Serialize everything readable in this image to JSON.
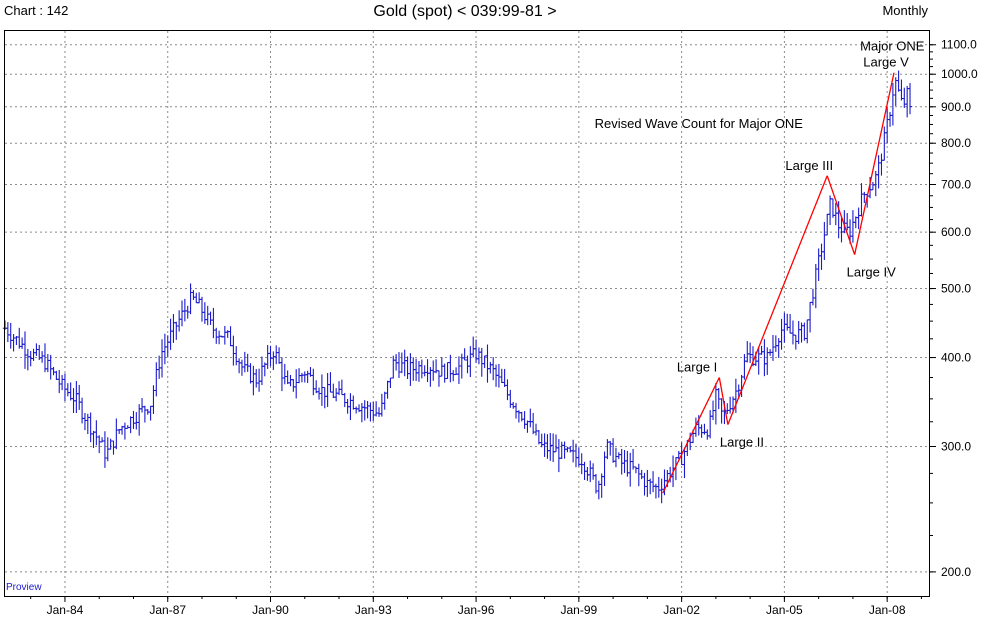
{
  "header": {
    "chart_id": "Chart : 142",
    "title": "Gold (spot) < 039:99-81 >",
    "period": "Monthly"
  },
  "watermark": "Proview",
  "colors": {
    "price_bars": "#1a1acc",
    "wave_lines": "#ff0000",
    "grid": "#8c8c8c",
    "background": "#ffffff",
    "axis": "#000000"
  },
  "chart_data": {
    "type": "bar",
    "style": "ohlc",
    "scale": "log",
    "ylim": [
      185,
      1150
    ],
    "xlim": [
      1982.25,
      2009.25
    ],
    "y_ticks": [
      {
        "value": 200,
        "label": "200.0"
      },
      {
        "value": 300,
        "label": "300.0"
      },
      {
        "value": 400,
        "label": "400.0"
      },
      {
        "value": 500,
        "label": "500.0"
      },
      {
        "value": 600,
        "label": "600.0"
      },
      {
        "value": 700,
        "label": "700.0"
      },
      {
        "value": 800,
        "label": "800.0"
      },
      {
        "value": 900,
        "label": "900.0"
      },
      {
        "value": 1000,
        "label": "1000.0"
      },
      {
        "value": 1100,
        "label": "1100.0"
      }
    ],
    "x_ticks": [
      {
        "value": 1984.0,
        "label": "Jan-84"
      },
      {
        "value": 1987.0,
        "label": "Jan-87"
      },
      {
        "value": 1990.0,
        "label": "Jan-90"
      },
      {
        "value": 1993.0,
        "label": "Jan-93"
      },
      {
        "value": 1996.0,
        "label": "Jan-96"
      },
      {
        "value": 1999.0,
        "label": "Jan-99"
      },
      {
        "value": 2002.0,
        "label": "Jan-02"
      },
      {
        "value": 2005.0,
        "label": "Jan-05"
      },
      {
        "value": 2008.0,
        "label": "Jan-08"
      }
    ],
    "grid": true,
    "price_path": [
      [
        1982.25,
        440
      ],
      [
        1983.0,
        405
      ],
      [
        1983.4,
        395
      ],
      [
        1983.9,
        365
      ],
      [
        1984.3,
        350
      ],
      [
        1984.6,
        330
      ],
      [
        1985.0,
        305
      ],
      [
        1985.2,
        292
      ],
      [
        1985.6,
        318
      ],
      [
        1986.0,
        330
      ],
      [
        1986.5,
        345
      ],
      [
        1986.8,
        405
      ],
      [
        1987.2,
        440
      ],
      [
        1987.7,
        485
      ],
      [
        1987.95,
        470
      ],
      [
        1988.3,
        440
      ],
      [
        1988.8,
        425
      ],
      [
        1989.2,
        385
      ],
      [
        1989.6,
        372
      ],
      [
        1989.9,
        395
      ],
      [
        1990.1,
        410
      ],
      [
        1990.5,
        362
      ],
      [
        1991.0,
        382
      ],
      [
        1991.5,
        360
      ],
      [
        1992.0,
        353
      ],
      [
        1992.5,
        345
      ],
      [
        1992.9,
        338
      ],
      [
        1993.2,
        333
      ],
      [
        1993.6,
        395
      ],
      [
        1994.0,
        385
      ],
      [
        1994.6,
        390
      ],
      [
        1995.0,
        382
      ],
      [
        1995.5,
        388
      ],
      [
        1996.0,
        405
      ],
      [
        1996.5,
        382
      ],
      [
        1997.0,
        350
      ],
      [
        1997.5,
        325
      ],
      [
        1997.9,
        300
      ],
      [
        1998.3,
        296
      ],
      [
        1998.7,
        292
      ],
      [
        1999.1,
        288
      ],
      [
        1999.55,
        262
      ],
      [
        1999.8,
        300
      ],
      [
        2000.2,
        285
      ],
      [
        2000.6,
        278
      ],
      [
        2001.0,
        266
      ],
      [
        2001.3,
        262
      ],
      [
        2001.7,
        278
      ],
      [
        2002.0,
        290
      ],
      [
        2002.4,
        318
      ],
      [
        2002.8,
        318
      ],
      [
        2003.0,
        352
      ],
      [
        2003.2,
        330
      ],
      [
        2003.6,
        360
      ],
      [
        2003.9,
        402
      ],
      [
        2004.2,
        400
      ],
      [
        2004.5,
        400
      ],
      [
        2004.9,
        438
      ],
      [
        2005.3,
        430
      ],
      [
        2005.6,
        435
      ],
      [
        2005.95,
        530
      ],
      [
        2006.35,
        660
      ],
      [
        2006.6,
        610
      ],
      [
        2006.9,
        600
      ],
      [
        2007.3,
        675
      ],
      [
        2007.7,
        720
      ],
      [
        2007.9,
        800
      ],
      [
        2008.1,
        900
      ],
      [
        2008.22,
        985
      ],
      [
        2008.45,
        900
      ],
      [
        2008.6,
        940
      ],
      [
        2008.72,
        850
      ]
    ],
    "wave_count": [
      {
        "label": "",
        "x": 2001.45,
        "y": 258
      },
      {
        "label": "Large I",
        "x": 2003.1,
        "y": 375
      },
      {
        "label": "Large II",
        "x": 2003.35,
        "y": 322
      },
      {
        "label": "Large III",
        "x": 2006.25,
        "y": 720
      },
      {
        "label": "Large IV",
        "x": 2007.05,
        "y": 558
      },
      {
        "label": "Large V",
        "x": 2008.2,
        "y": 1005
      }
    ],
    "annotations": [
      {
        "text": "Major ONE",
        "x": 2008.15,
        "y": 1080
      },
      {
        "text": "Revised Wave Count for Major ONE",
        "x": 2002.5,
        "y": 840
      }
    ]
  }
}
